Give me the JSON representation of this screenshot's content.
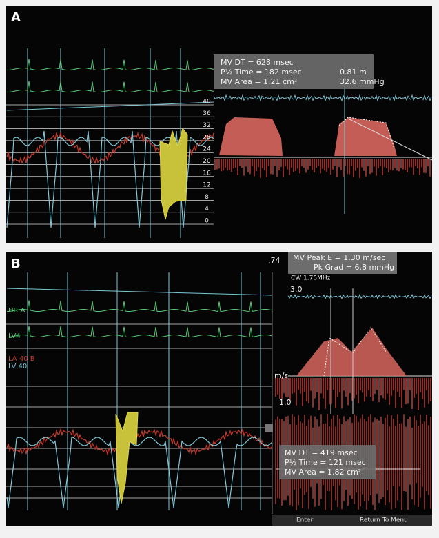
{
  "panel_a": {
    "label": "A",
    "measurements": [
      "MV DT = 628 msec",
      "P½ Time = 182 msec",
      "MV Area = 1.21 cm²"
    ],
    "overlay": [
      "0.81 m",
      "32.6 mmHg"
    ],
    "scale": [
      40,
      36,
      32,
      28,
      24,
      20,
      16,
      12,
      8,
      4,
      0
    ]
  },
  "panel_b": {
    "label": "B",
    "top_value": ".74",
    "peak": [
      "MV Peak E = 1.30 m/sec",
      "Pk Grad = 6.8 mmHg"
    ],
    "probe": "CW 1.75MHz",
    "velocity_axis": [
      "3.0",
      "m/s",
      "1.0"
    ],
    "trace_labels": [
      "HR A",
      "LV4",
      "LA 40  B",
      "LV 40"
    ],
    "measurements": [
      "MV DT = 419 msec",
      "P½ Time = 121 msec",
      "MV Area = 1.82 cm²"
    ],
    "menu": [
      "Enter",
      "Return To Menu"
    ]
  }
}
